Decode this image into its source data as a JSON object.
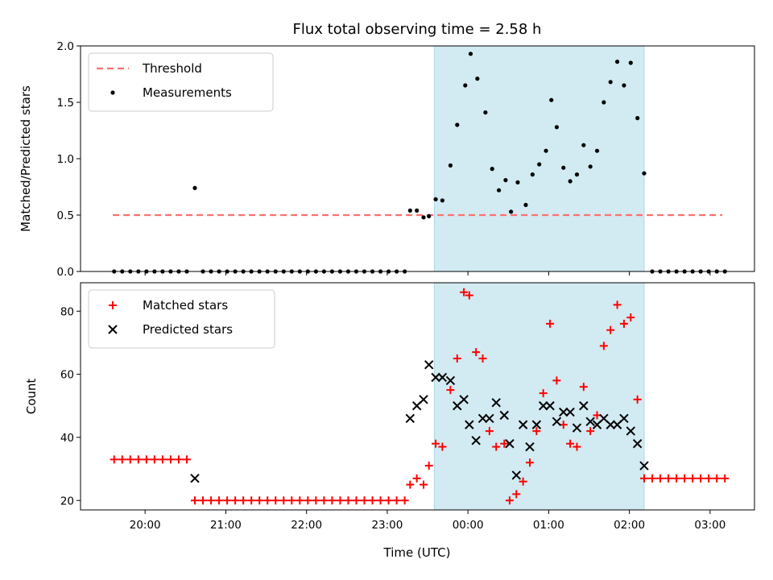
{
  "figure": {
    "title": "Flux total observing time = 2.58 h",
    "xlabel": "Time (UTC)",
    "x_ticks": [
      "20:00",
      "21:00",
      "22:00",
      "23:00",
      "00:00",
      "01:00",
      "02:00",
      "03:00"
    ],
    "x_range": [
      "19:12",
      "03:33"
    ],
    "highlight_span": [
      "23:35",
      "02:11"
    ],
    "highlight_color": "#add8e6"
  },
  "chart_data": [
    {
      "type": "scatter",
      "panel": "top",
      "ylabel": "Matched/Predicted stars",
      "ylim": [
        0,
        2.0
      ],
      "y_ticks": [
        "0.0",
        "0.5",
        "1.0",
        "1.5",
        "2.0"
      ],
      "legend_position": "upper-left",
      "threshold": {
        "name": "Threshold",
        "value": 0.5,
        "x_range": [
          "19:36",
          "03:09"
        ],
        "color": "#ff7070"
      },
      "series": [
        {
          "name": "Measurements",
          "color": "#000000",
          "points": [
            [
              "19:37",
              0
            ],
            [
              "19:43",
              0
            ],
            [
              "19:49",
              0
            ],
            [
              "19:55",
              0
            ],
            [
              "20:01",
              0
            ],
            [
              "20:07",
              0
            ],
            [
              "20:13",
              0
            ],
            [
              "20:19",
              0
            ],
            [
              "20:25",
              0
            ],
            [
              "20:31",
              0
            ],
            [
              "20:37",
              0.74
            ],
            [
              "20:43",
              0
            ],
            [
              "20:49",
              0
            ],
            [
              "20:55",
              0
            ],
            [
              "21:01",
              0
            ],
            [
              "21:07",
              0
            ],
            [
              "21:13",
              0
            ],
            [
              "21:19",
              0
            ],
            [
              "21:25",
              0
            ],
            [
              "21:31",
              0
            ],
            [
              "21:37",
              0
            ],
            [
              "21:43",
              0
            ],
            [
              "21:49",
              0
            ],
            [
              "21:55",
              0
            ],
            [
              "22:01",
              0
            ],
            [
              "22:07",
              0
            ],
            [
              "22:13",
              0
            ],
            [
              "22:19",
              0
            ],
            [
              "22:25",
              0
            ],
            [
              "22:31",
              0
            ],
            [
              "22:37",
              0
            ],
            [
              "22:43",
              0
            ],
            [
              "22:49",
              0
            ],
            [
              "22:55",
              0
            ],
            [
              "23:01",
              0
            ],
            [
              "23:07",
              0
            ],
            [
              "23:13",
              0
            ],
            [
              "23:17",
              0.54
            ],
            [
              "23:22",
              0.54
            ],
            [
              "23:27",
              0.48
            ],
            [
              "23:31",
              0.49
            ],
            [
              "23:36",
              0.64
            ],
            [
              "23:41",
              0.63
            ],
            [
              "23:47",
              0.94
            ],
            [
              "23:52",
              1.3
            ],
            [
              "23:58",
              1.65
            ],
            [
              "00:02",
              1.93
            ],
            [
              "00:07",
              1.71
            ],
            [
              "00:13",
              1.41
            ],
            [
              "00:18",
              0.91
            ],
            [
              "00:23",
              0.72
            ],
            [
              "00:28",
              0.81
            ],
            [
              "00:32",
              0.53
            ],
            [
              "00:37",
              0.79
            ],
            [
              "00:43",
              0.59
            ],
            [
              "00:48",
              0.86
            ],
            [
              "00:53",
              0.95
            ],
            [
              "00:58",
              1.07
            ],
            [
              "01:02",
              1.52
            ],
            [
              "01:06",
              1.28
            ],
            [
              "01:11",
              0.92
            ],
            [
              "01:16",
              0.8
            ],
            [
              "01:21",
              0.86
            ],
            [
              "01:26",
              1.12
            ],
            [
              "01:31",
              0.93
            ],
            [
              "01:36",
              1.07
            ],
            [
              "01:41",
              1.5
            ],
            [
              "01:46",
              1.68
            ],
            [
              "01:51",
              1.86
            ],
            [
              "01:56",
              1.65
            ],
            [
              "02:01",
              1.85
            ],
            [
              "02:06",
              1.36
            ],
            [
              "02:11",
              0.87
            ],
            [
              "02:17",
              0
            ],
            [
              "02:23",
              0
            ],
            [
              "02:29",
              0
            ],
            [
              "02:35",
              0
            ],
            [
              "02:41",
              0
            ],
            [
              "02:47",
              0
            ],
            [
              "02:53",
              0
            ],
            [
              "02:59",
              0
            ],
            [
              "03:05",
              0
            ],
            [
              "03:11",
              0
            ]
          ]
        }
      ]
    },
    {
      "type": "scatter",
      "panel": "bottom",
      "ylabel": "Count",
      "ylim": [
        17,
        89
      ],
      "y_ticks": [
        "20",
        "40",
        "60",
        "80"
      ],
      "legend_position": "upper-left",
      "series": [
        {
          "name": "Matched stars",
          "marker": "+",
          "color": "#ff0000",
          "points": [
            [
              "19:37",
              33
            ],
            [
              "19:43",
              33
            ],
            [
              "19:49",
              33
            ],
            [
              "19:55",
              33
            ],
            [
              "20:01",
              33
            ],
            [
              "20:07",
              33
            ],
            [
              "20:13",
              33
            ],
            [
              "20:19",
              33
            ],
            [
              "20:25",
              33
            ],
            [
              "20:31",
              33
            ],
            [
              "20:37",
              20
            ],
            [
              "20:43",
              20
            ],
            [
              "20:49",
              20
            ],
            [
              "20:55",
              20
            ],
            [
              "21:01",
              20
            ],
            [
              "21:07",
              20
            ],
            [
              "21:13",
              20
            ],
            [
              "21:19",
              20
            ],
            [
              "21:25",
              20
            ],
            [
              "21:31",
              20
            ],
            [
              "21:37",
              20
            ],
            [
              "21:43",
              20
            ],
            [
              "21:49",
              20
            ],
            [
              "21:55",
              20
            ],
            [
              "22:01",
              20
            ],
            [
              "22:07",
              20
            ],
            [
              "22:13",
              20
            ],
            [
              "22:19",
              20
            ],
            [
              "22:25",
              20
            ],
            [
              "22:31",
              20
            ],
            [
              "22:37",
              20
            ],
            [
              "22:43",
              20
            ],
            [
              "22:49",
              20
            ],
            [
              "22:55",
              20
            ],
            [
              "23:01",
              20
            ],
            [
              "23:07",
              20
            ],
            [
              "23:13",
              20
            ],
            [
              "23:17",
              25
            ],
            [
              "23:22",
              27
            ],
            [
              "23:27",
              25
            ],
            [
              "23:31",
              31
            ],
            [
              "23:36",
              38
            ],
            [
              "23:41",
              37
            ],
            [
              "23:47",
              55
            ],
            [
              "23:52",
              65
            ],
            [
              "23:57",
              86
            ],
            [
              "00:01",
              85
            ],
            [
              "00:06",
              67
            ],
            [
              "00:11",
              65
            ],
            [
              "00:16",
              42
            ],
            [
              "00:21",
              37
            ],
            [
              "00:27",
              38
            ],
            [
              "00:31",
              20
            ],
            [
              "00:36",
              22
            ],
            [
              "00:41",
              26
            ],
            [
              "00:46",
              32
            ],
            [
              "00:51",
              42
            ],
            [
              "00:56",
              54
            ],
            [
              "01:01",
              76
            ],
            [
              "01:06",
              58
            ],
            [
              "01:11",
              44
            ],
            [
              "01:16",
              38
            ],
            [
              "01:21",
              37
            ],
            [
              "01:26",
              56
            ],
            [
              "01:31",
              42
            ],
            [
              "01:36",
              47
            ],
            [
              "01:41",
              69
            ],
            [
              "01:46",
              74
            ],
            [
              "01:51",
              82
            ],
            [
              "01:56",
              76
            ],
            [
              "02:01",
              78
            ],
            [
              "02:06",
              52
            ],
            [
              "02:11",
              27
            ],
            [
              "02:17",
              27
            ],
            [
              "02:23",
              27
            ],
            [
              "02:29",
              27
            ],
            [
              "02:35",
              27
            ],
            [
              "02:41",
              27
            ],
            [
              "02:47",
              27
            ],
            [
              "02:53",
              27
            ],
            [
              "02:59",
              27
            ],
            [
              "03:05",
              27
            ],
            [
              "03:11",
              27
            ]
          ]
        },
        {
          "name": "Predicted stars",
          "marker": "x",
          "color": "#000000",
          "points": [
            [
              "20:37",
              27
            ],
            [
              "23:17",
              46
            ],
            [
              "23:22",
              50
            ],
            [
              "23:27",
              52
            ],
            [
              "23:31",
              63
            ],
            [
              "23:36",
              59
            ],
            [
              "23:41",
              59
            ],
            [
              "23:47",
              58
            ],
            [
              "23:52",
              50
            ],
            [
              "23:57",
              52
            ],
            [
              "00:01",
              44
            ],
            [
              "00:06",
              39
            ],
            [
              "00:11",
              46
            ],
            [
              "00:16",
              46
            ],
            [
              "00:21",
              51
            ],
            [
              "00:27",
              47
            ],
            [
              "00:31",
              38
            ],
            [
              "00:36",
              28
            ],
            [
              "00:41",
              44
            ],
            [
              "00:46",
              37
            ],
            [
              "00:51",
              44
            ],
            [
              "00:56",
              50
            ],
            [
              "01:01",
              50
            ],
            [
              "01:06",
              45
            ],
            [
              "01:11",
              48
            ],
            [
              "01:16",
              48
            ],
            [
              "01:21",
              43
            ],
            [
              "01:26",
              50
            ],
            [
              "01:31",
              45
            ],
            [
              "01:36",
              44
            ],
            [
              "01:41",
              46
            ],
            [
              "01:46",
              44
            ],
            [
              "01:51",
              44
            ],
            [
              "01:56",
              46
            ],
            [
              "02:01",
              42
            ],
            [
              "02:06",
              38
            ],
            [
              "02:11",
              31
            ]
          ]
        }
      ]
    }
  ]
}
